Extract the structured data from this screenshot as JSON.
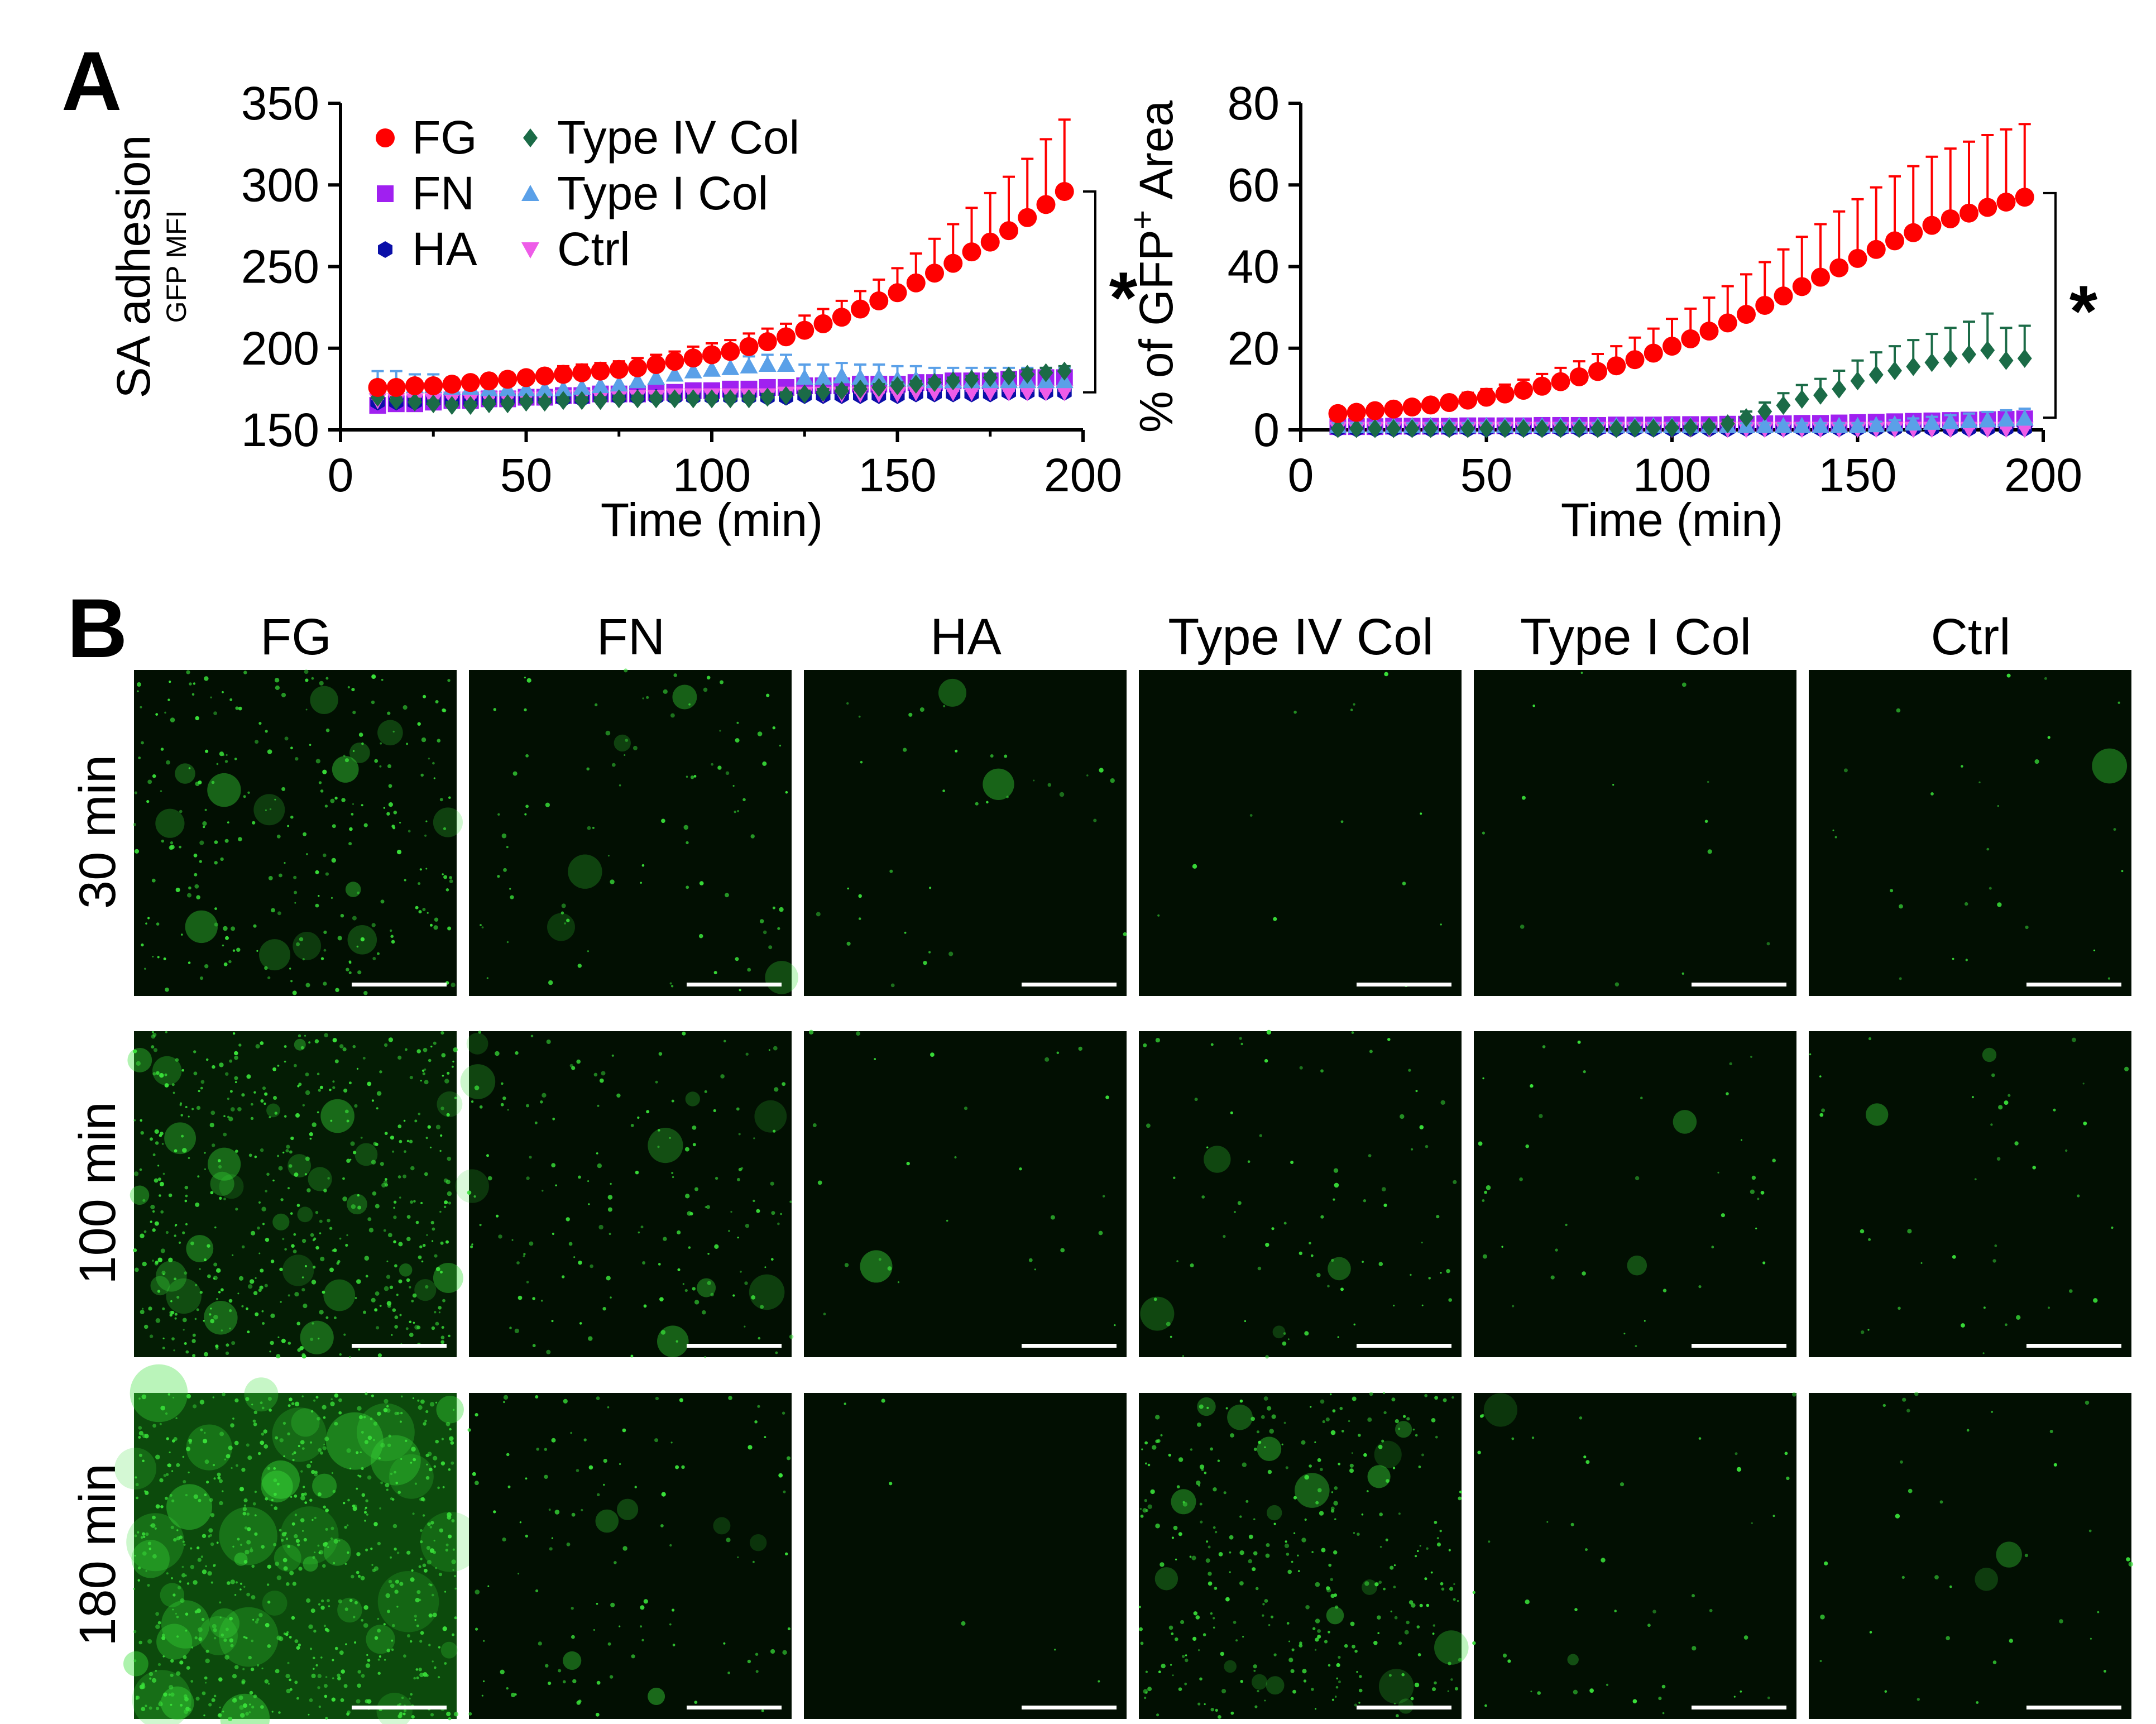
{
  "panel_a_label": "A",
  "panel_b_label": "B",
  "chart_data": [
    {
      "type": "scatter",
      "title": "",
      "ylabel": "SA adhesion",
      "ylabel_sub": "GFP MFI",
      "xlabel": "Time (min)",
      "xlim": [
        0,
        200
      ],
      "ylim": [
        150,
        350
      ],
      "xticks": [
        "0",
        "50",
        "100",
        "150",
        "200"
      ],
      "yticks": [
        "150",
        "200",
        "250",
        "300",
        "350"
      ],
      "grid": false,
      "legend_placement": "top-left",
      "significance": "*",
      "x": [
        10,
        15,
        20,
        25,
        30,
        35,
        40,
        45,
        50,
        55,
        60,
        65,
        70,
        75,
        80,
        85,
        90,
        95,
        100,
        105,
        110,
        115,
        120,
        125,
        130,
        135,
        140,
        145,
        150,
        155,
        160,
        165,
        170,
        175,
        180,
        185,
        190,
        195
      ],
      "series": [
        {
          "name": "FG",
          "marker": "circle",
          "color": "#ff0000",
          "values": [
            176,
            176,
            177,
            177,
            178,
            179,
            180,
            181,
            182,
            183,
            184,
            185,
            186,
            187,
            188,
            190,
            192,
            194,
            196,
            198,
            201,
            204,
            207,
            211,
            215,
            219,
            224,
            229,
            234,
            240,
            246,
            252,
            259,
            265,
            272,
            280,
            288,
            296
          ],
          "errors": [
            3,
            3,
            3,
            3,
            3,
            3,
            4,
            4,
            4,
            4,
            5,
            5,
            5,
            5,
            6,
            6,
            6,
            7,
            7,
            7,
            8,
            8,
            8,
            9,
            9,
            10,
            11,
            13,
            15,
            18,
            21,
            24,
            27,
            30,
            33,
            36,
            40,
            44
          ]
        },
        {
          "name": "FN",
          "marker": "square",
          "color": "#a020f0",
          "values": [
            165,
            166,
            166,
            167,
            168,
            168,
            169,
            169,
            170,
            170,
            171,
            171,
            172,
            172,
            172,
            173,
            173,
            174,
            174,
            175,
            175,
            176,
            176,
            177,
            177,
            177,
            178,
            178,
            178,
            179,
            179,
            180,
            180,
            180,
            181,
            182,
            182,
            182
          ],
          "errors": [
            2,
            2,
            2,
            2,
            2,
            2,
            2,
            2,
            2,
            2,
            2,
            2,
            2,
            2,
            2,
            2,
            2,
            2,
            2,
            2,
            2,
            2,
            2,
            2,
            2,
            2,
            2,
            2,
            2,
            2,
            2,
            2,
            2,
            2,
            2,
            2,
            2,
            2
          ]
        },
        {
          "name": "HA",
          "marker": "hexagon",
          "color": "#0a0fa8",
          "values": [
            167,
            167,
            167,
            168,
            168,
            168,
            168,
            169,
            169,
            169,
            169,
            169,
            170,
            170,
            170,
            170,
            170,
            170,
            170,
            170,
            170,
            170,
            170,
            171,
            171,
            171,
            171,
            171,
            171,
            172,
            172,
            172,
            172,
            172,
            173,
            173,
            173,
            173
          ],
          "errors": [
            1,
            1,
            1,
            1,
            1,
            1,
            1,
            1,
            1,
            1,
            1,
            1,
            1,
            1,
            1,
            1,
            1,
            1,
            1,
            1,
            1,
            1,
            1,
            1,
            1,
            1,
            1,
            1,
            1,
            1,
            1,
            1,
            1,
            1,
            1,
            1,
            1,
            1
          ]
        },
        {
          "name": "Type IV Col",
          "marker": "diamond",
          "color": "#1b6b47",
          "values": [
            170,
            168,
            167,
            166,
            165,
            165,
            166,
            166,
            167,
            167,
            168,
            168,
            168,
            169,
            169,
            169,
            169,
            169,
            169,
            169,
            169,
            170,
            171,
            172,
            173,
            174,
            175,
            176,
            177,
            178,
            179,
            180,
            181,
            182,
            183,
            184,
            185,
            186
          ],
          "errors": [
            2,
            2,
            2,
            2,
            2,
            2,
            2,
            2,
            2,
            2,
            2,
            2,
            2,
            2,
            2,
            2,
            2,
            2,
            2,
            2,
            2,
            2,
            2,
            2,
            2,
            2,
            2,
            2,
            2,
            2,
            2,
            2,
            2,
            2,
            2,
            3,
            3,
            3
          ]
        },
        {
          "name": "Type I Col",
          "marker": "triangle-up",
          "color": "#5aa0e8",
          "values": [
            178,
            178,
            177,
            177,
            176,
            176,
            175,
            175,
            175,
            175,
            175,
            176,
            177,
            178,
            180,
            182,
            184,
            186,
            187,
            188,
            189,
            190,
            190,
            182,
            182,
            183,
            182,
            182,
            181,
            181,
            180,
            180,
            180,
            180,
            180,
            180,
            180,
            180
          ],
          "errors": [
            8,
            8,
            7,
            7,
            6,
            6,
            5,
            5,
            5,
            5,
            5,
            5,
            5,
            5,
            5,
            6,
            6,
            6,
            6,
            6,
            6,
            6,
            6,
            8,
            8,
            8,
            8,
            8,
            8,
            8,
            8,
            8,
            8,
            8,
            8,
            8,
            8,
            8
          ]
        },
        {
          "name": "Ctrl",
          "marker": "triangle-down",
          "color": "#ee5ce8",
          "values": [
            168,
            168,
            168,
            168,
            169,
            169,
            169,
            169,
            169,
            169,
            170,
            170,
            170,
            170,
            170,
            170,
            171,
            171,
            171,
            171,
            171,
            171,
            172,
            172,
            172,
            172,
            172,
            172,
            172,
            173,
            173,
            173,
            173,
            173,
            173,
            173,
            173,
            173
          ],
          "errors": [
            1,
            1,
            1,
            1,
            1,
            1,
            1,
            1,
            1,
            1,
            1,
            1,
            1,
            1,
            1,
            1,
            1,
            1,
            1,
            1,
            1,
            1,
            1,
            1,
            1,
            1,
            1,
            1,
            1,
            1,
            1,
            1,
            1,
            1,
            1,
            1,
            1,
            1
          ]
        }
      ]
    },
    {
      "type": "scatter",
      "title": "",
      "ylabel": "% of GFP",
      "ylabel_sup": "+",
      "ylabel_tail": " Area",
      "xlabel": "Time (min)",
      "xlim": [
        0,
        200
      ],
      "ylim": [
        0,
        80
      ],
      "xticks": [
        "0",
        "50",
        "100",
        "150",
        "200"
      ],
      "yticks": [
        "0",
        "20",
        "40",
        "60",
        "80"
      ],
      "grid": false,
      "significance": "*",
      "x": [
        10,
        15,
        20,
        25,
        30,
        35,
        40,
        45,
        50,
        55,
        60,
        65,
        70,
        75,
        80,
        85,
        90,
        95,
        100,
        105,
        110,
        115,
        120,
        125,
        130,
        135,
        140,
        145,
        150,
        155,
        160,
        165,
        170,
        175,
        180,
        185,
        190,
        195
      ],
      "series": [
        {
          "name": "FG",
          "marker": "circle",
          "color": "#ff0000",
          "values": [
            4,
            4.3,
            4.7,
            5.1,
            5.6,
            6.1,
            6.7,
            7.3,
            8,
            8.8,
            9.7,
            10.7,
            11.8,
            13,
            14.3,
            15.7,
            17.2,
            18.8,
            20.5,
            22.3,
            24.2,
            26.2,
            28.3,
            30.5,
            32.8,
            35.1,
            37.4,
            39.7,
            42,
            44.2,
            46.3,
            48.3,
            50.1,
            51.7,
            53.1,
            54.5,
            55.8,
            57
          ],
          "errors": [
            1,
            1,
            1,
            1,
            1.2,
            1.4,
            1.6,
            1.8,
            2,
            2.3,
            2.6,
            3,
            3.4,
            3.8,
            4.3,
            4.8,
            5.4,
            6,
            6.7,
            7.4,
            8.2,
            9,
            9.8,
            10.6,
            11.4,
            12.2,
            13,
            13.8,
            14.5,
            15.2,
            15.8,
            16.3,
            16.8,
            17.2,
            17.5,
            17.7,
            17.8,
            17.9
          ]
        },
        {
          "name": "FN",
          "marker": "square",
          "color": "#a020f0",
          "values": [
            0.8,
            0.8,
            0.8,
            0.9,
            0.9,
            0.9,
            0.9,
            1,
            1,
            1,
            1,
            1.1,
            1.1,
            1.1,
            1.1,
            1.2,
            1.2,
            1.2,
            1.3,
            1.3,
            1.3,
            1.4,
            1.4,
            1.5,
            1.5,
            1.6,
            1.6,
            1.7,
            1.8,
            1.9,
            2,
            2.1,
            2.2,
            2.3,
            2.4,
            2.5,
            2.6,
            2.7
          ],
          "errors": [
            0.5,
            0.5,
            0.5,
            0.5,
            0.5,
            0.5,
            0.5,
            0.5,
            0.5,
            0.5,
            0.5,
            0.5,
            0.5,
            0.5,
            0.5,
            0.5,
            0.5,
            0.5,
            0.5,
            0.5,
            0.5,
            0.5,
            0.5,
            0.5,
            0.5,
            0.5,
            0.5,
            0.5,
            0.5,
            0.5,
            0.5,
            0.5,
            0.5,
            0.5,
            0.5,
            0.5,
            0.5,
            0.5
          ]
        },
        {
          "name": "HA",
          "marker": "hexagon",
          "color": "#0a0fa8",
          "values": [
            0.2,
            0.2,
            0.2,
            0.2,
            0.2,
            0.2,
            0.2,
            0.2,
            0.2,
            0.2,
            0.2,
            0.2,
            0.2,
            0.2,
            0.2,
            0.2,
            0.2,
            0.2,
            0.2,
            0.2,
            0.2,
            0.2,
            0.3,
            0.3,
            0.3,
            0.3,
            0.3,
            0.3,
            0.3,
            0.3,
            0.3,
            0.3,
            0.3,
            0.3,
            0.3,
            0.3,
            0.3,
            0.3
          ],
          "errors": [
            0.2,
            0.2,
            0.2,
            0.2,
            0.2,
            0.2,
            0.2,
            0.2,
            0.2,
            0.2,
            0.2,
            0.2,
            0.2,
            0.2,
            0.2,
            0.2,
            0.2,
            0.2,
            0.2,
            0.2,
            0.2,
            0.2,
            0.2,
            0.2,
            0.2,
            0.2,
            0.2,
            0.2,
            0.2,
            0.2,
            0.2,
            0.2,
            0.2,
            0.2,
            0.2,
            0.2,
            0.2,
            0.2
          ]
        },
        {
          "name": "Type IV Col",
          "marker": "diamond",
          "color": "#1b6b47",
          "values": [
            0.3,
            0.3,
            0.3,
            0.3,
            0.3,
            0.3,
            0.3,
            0.3,
            0.3,
            0.3,
            0.3,
            0.3,
            0.3,
            0.3,
            0.3,
            0.3,
            0.4,
            0.4,
            0.5,
            0.6,
            0.8,
            1.5,
            3,
            4.5,
            6,
            7.5,
            8.5,
            10,
            12,
            13.5,
            14.5,
            15.5,
            16.5,
            17.5,
            18.5,
            19.5,
            17,
            17.5
          ],
          "errors": [
            0.2,
            0.2,
            0.2,
            0.2,
            0.2,
            0.2,
            0.2,
            0.2,
            0.2,
            0.2,
            0.2,
            0.2,
            0.2,
            0.2,
            0.2,
            0.2,
            0.2,
            0.2,
            0.3,
            0.4,
            0.5,
            1,
            1.5,
            2.2,
            3,
            3.5,
            4,
            4.5,
            5,
            5.5,
            6,
            6.5,
            7,
            7.5,
            8,
            9,
            8,
            8
          ]
        },
        {
          "name": "Type I Col",
          "marker": "triangle-up",
          "color": "#5aa0e8",
          "values": [
            1,
            1,
            1,
            1,
            1,
            1,
            1,
            1,
            1,
            1,
            1,
            1,
            1,
            1,
            1,
            1,
            1,
            1,
            1,
            1,
            1,
            1,
            1,
            1,
            1,
            1,
            1,
            1,
            1,
            1.2,
            1.4,
            1.6,
            1.8,
            2,
            2.2,
            2.4,
            2.6,
            2.8
          ],
          "errors": [
            0.6,
            0.6,
            0.6,
            0.6,
            0.6,
            0.6,
            0.6,
            0.6,
            0.6,
            0.6,
            0.6,
            0.6,
            0.6,
            0.6,
            0.6,
            0.6,
            0.6,
            0.6,
            0.6,
            0.6,
            0.6,
            0.6,
            0.6,
            0.6,
            0.6,
            0.6,
            0.6,
            0.6,
            0.6,
            0.8,
            1,
            1.2,
            1.4,
            1.6,
            1.8,
            2,
            2.2,
            2.4
          ]
        },
        {
          "name": "Ctrl",
          "marker": "triangle-down",
          "color": "#ee5ce8",
          "values": [
            0.2,
            0.2,
            0.2,
            0.2,
            0.2,
            0.2,
            0.2,
            0.2,
            0.2,
            0.2,
            0.2,
            0.2,
            0.2,
            0.2,
            0.2,
            0.2,
            0.2,
            0.2,
            0.2,
            0.2,
            0.2,
            0.2,
            0.2,
            0.2,
            0.2,
            0.2,
            0.2,
            0.2,
            0.2,
            0.2,
            0.2,
            0.2,
            0.2,
            0.2,
            0.2,
            0.2,
            0.2,
            0.2
          ],
          "errors": [
            0.2,
            0.2,
            0.2,
            0.2,
            0.2,
            0.2,
            0.2,
            0.2,
            0.2,
            0.2,
            0.2,
            0.2,
            0.2,
            0.2,
            0.2,
            0.2,
            0.2,
            0.2,
            0.2,
            0.2,
            0.2,
            0.2,
            0.2,
            0.2,
            0.2,
            0.2,
            0.2,
            0.2,
            0.2,
            0.2,
            0.2,
            0.2,
            0.2,
            0.2,
            0.2,
            0.2,
            0.2,
            0.2
          ]
        }
      ]
    }
  ],
  "micrographs": {
    "columns": [
      "FG",
      "FN",
      "HA",
      "Type IV Col",
      "Type I Col",
      "Ctrl"
    ],
    "rows": [
      "30 min",
      "100 min",
      "180 min"
    ],
    "color": "#39e039",
    "density": [
      [
        0.35,
        0.12,
        0.04,
        0.01,
        0.01,
        0.03
      ],
      [
        0.7,
        0.22,
        0.03,
        0.1,
        0.05,
        0.05
      ],
      [
        1.0,
        0.15,
        0.0,
        0.45,
        0.06,
        0.04
      ]
    ]
  }
}
